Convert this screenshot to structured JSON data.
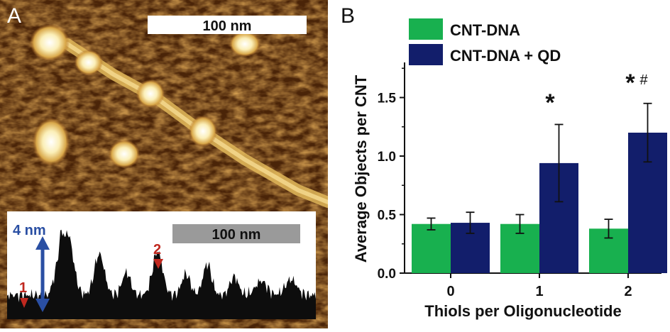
{
  "panel_a": {
    "letter": "A",
    "scalebar_top": "100 nm",
    "scalebar_bottom": "100 nm",
    "height_label": "4 nm",
    "marker_1": "1",
    "marker_2": "2",
    "colors": {
      "afm_dark": "#3a1c06",
      "afm_mid": "#7a3f0f",
      "afm_bright": "#f7e7a6",
      "profile_fill": "#0d0d0d",
      "profile_bg": "#ffffff",
      "arrow_blue": "#2a4fa3",
      "marker_red": "#c0281f",
      "scalebar_gray": "#9a9a9a"
    }
  },
  "panel_b": {
    "letter": "B",
    "sig_mark_1": "*",
    "sig_mark_2a": "*",
    "sig_mark_2b": "#"
  },
  "chart_data": {
    "type": "bar",
    "categories": [
      "0",
      "1",
      "2"
    ],
    "series": [
      {
        "name": "CNT-DNA",
        "color": "#18b04f",
        "values": [
          0.42,
          0.42,
          0.38
        ],
        "errors": [
          0.05,
          0.08,
          0.08
        ]
      },
      {
        "name": "CNT-DNA + QD",
        "color": "#121e6b",
        "values": [
          0.43,
          0.94,
          1.2
        ],
        "errors": [
          0.09,
          0.33,
          0.25
        ]
      }
    ],
    "xlabel": "Thiols per Oligonucleotide",
    "ylabel": "Average Objects per CNT",
    "ylim": [
      0,
      1.8
    ],
    "yticks": [
      "0.0",
      "0.5",
      "1.0",
      "1.5"
    ],
    "legend_position": "top-left",
    "grid": false
  }
}
